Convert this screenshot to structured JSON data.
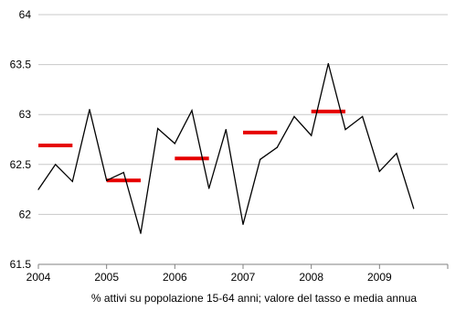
{
  "chart_data": {
    "type": "line",
    "title": "",
    "xlabel": "% attivi su popolazione 15-64 anni; valore del tasso e media annua",
    "ylabel": "",
    "ylim": [
      61.5,
      64
    ],
    "xlim": [
      2004,
      2010
    ],
    "yticks": [
      "61.5",
      "62",
      "62.5",
      "63",
      "63.5",
      "64"
    ],
    "xticks": [
      "2004",
      "2005",
      "2006",
      "2007",
      "2008",
      "2009"
    ],
    "grid": true,
    "legend": "none",
    "colors": {
      "line": "#000000",
      "mean": "#e60000",
      "grid": "#c8c8c8",
      "axis": "#808080"
    },
    "series": [
      {
        "kind": "quarterly",
        "x": [
          2004.0,
          2004.25,
          2004.5,
          2004.75,
          2005.0,
          2005.25,
          2005.5,
          2005.75,
          2006.0,
          2006.25,
          2006.5,
          2006.75,
          2007.0,
          2007.25,
          2007.5,
          2007.75,
          2008.0,
          2008.25,
          2008.5,
          2008.75,
          2009.0,
          2009.25,
          2009.5
        ],
        "values": [
          62.25,
          62.5,
          62.33,
          63.05,
          62.34,
          62.42,
          61.81,
          62.86,
          62.71,
          63.04,
          62.26,
          62.85,
          61.9,
          62.55,
          62.67,
          62.98,
          62.79,
          63.51,
          62.85,
          62.98,
          62.43,
          62.61,
          62.06
        ]
      },
      {
        "kind": "annual-mean",
        "segments": [
          {
            "x0": 2004.0,
            "x1": 2004.5,
            "value": 62.69
          },
          {
            "x0": 2005.0,
            "x1": 2005.5,
            "value": 62.34
          },
          {
            "x0": 2006.0,
            "x1": 2006.5,
            "value": 62.56
          },
          {
            "x0": 2007.0,
            "x1": 2007.5,
            "value": 62.82
          },
          {
            "x0": 2008.0,
            "x1": 2008.5,
            "value": 63.03
          }
        ]
      }
    ]
  }
}
